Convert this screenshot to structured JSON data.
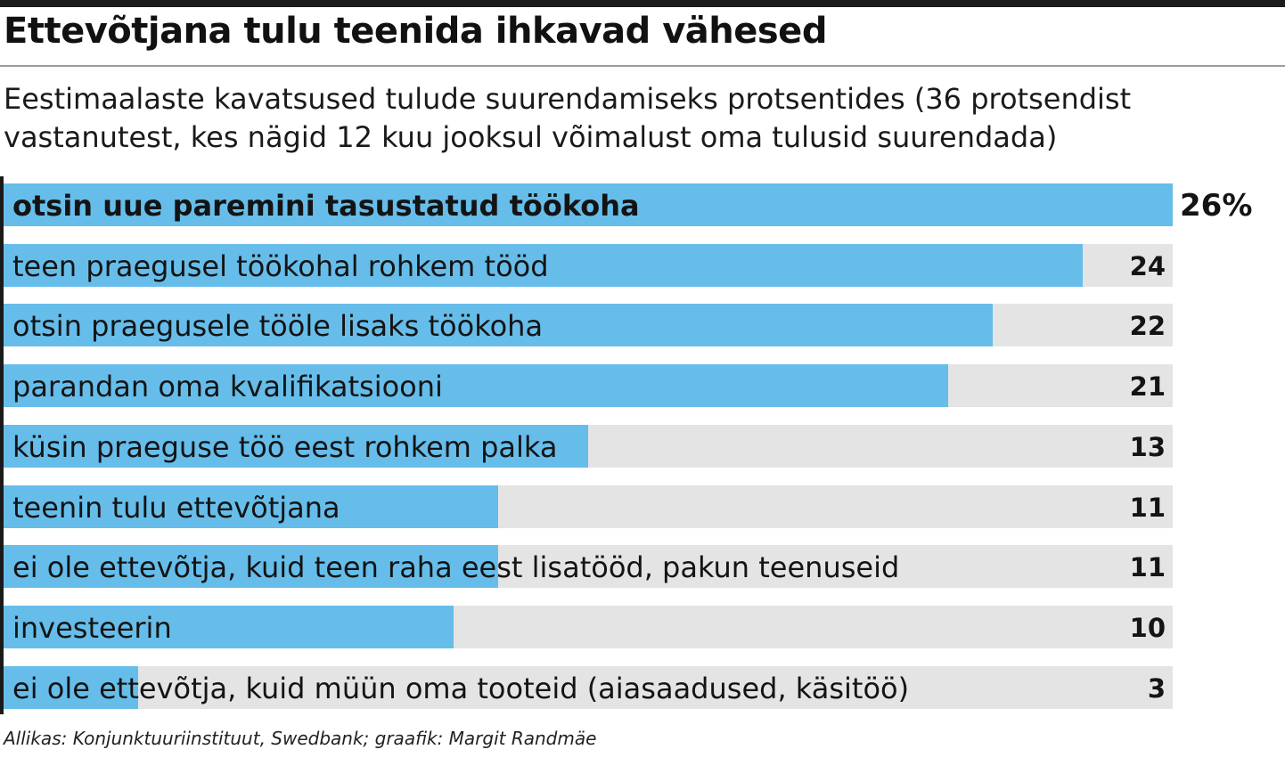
{
  "chart_data": {
    "type": "bar",
    "orientation": "horizontal",
    "title": "Ettevõtjana tulu teenida ihkavad vähesed",
    "subtitle": "Eestimaalaste kavatsused tulude suurendamiseks protsentides (36 protsendist vastanutest, kes nägid 12 kuu jooksul võimalust oma tulusid suurendada)",
    "categories": [
      "otsin uue paremini tasustatud töökoha",
      "teen praegusel töökohal rohkem tööd",
      "otsin praegusele tööle lisaks töökoha",
      "parandan oma kvalifikatsiooni",
      "küsin praeguse töö eest rohkem palka",
      "teenin tulu ettevõtjana",
      "ei ole ettevõtja, kuid teen raha eest lisatööd, pakun teenuseid",
      "investeerin",
      "ei ole ettevõtja, kuid müün oma tooteid (aiasaadused, käsitöö)"
    ],
    "values": [
      26,
      24,
      22,
      21,
      13,
      11,
      11,
      10,
      3
    ],
    "value_labels": [
      "26%",
      "24",
      "22",
      "21",
      "13",
      "11",
      "11",
      "10",
      "3"
    ],
    "xlim": [
      0,
      26
    ],
    "grid": false,
    "colors": {
      "bar": "#66bdea",
      "track": "#e4e4e4",
      "axis": "#1a1a1a"
    },
    "source": "Allikas: Konjunktuuriinstituut, Swedbank; graafik: Margit Randmäe"
  }
}
